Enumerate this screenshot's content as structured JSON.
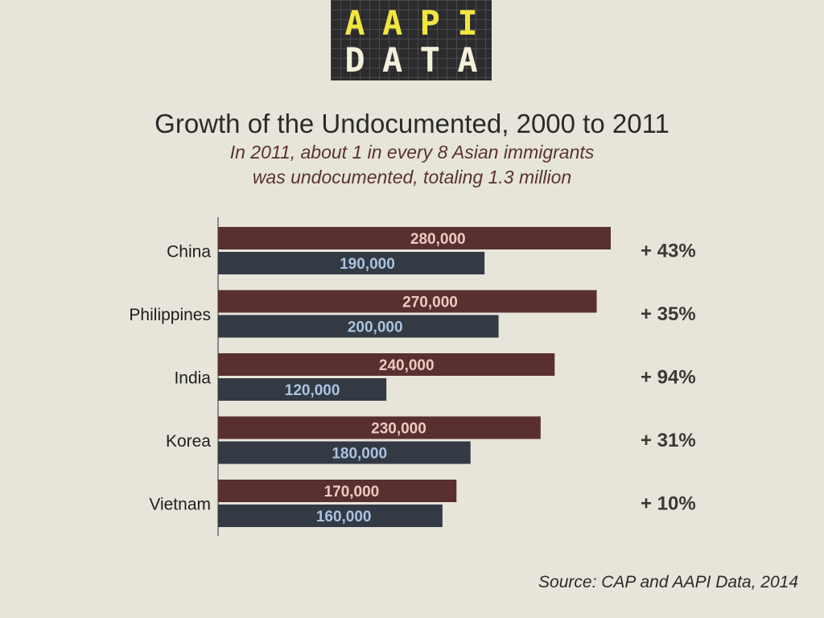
{
  "logo": {
    "line1": [
      "A",
      "A",
      "P",
      "I"
    ],
    "line2": [
      "D",
      "A",
      "T",
      "A"
    ]
  },
  "header": {
    "title": "Growth of the Undocumented, 2000 to 2011",
    "subtitle_line1": "In 2011, about 1 in every 8 Asian immigrants",
    "subtitle_line2": "was undocumented, totaling 1.3 million"
  },
  "source": "Source: CAP and AAPI Data, 2014",
  "colors": {
    "background": "#e7e5da",
    "series_2011": "#5a2f30",
    "series_2000": "#343a44",
    "label_2011": "#efc8c1",
    "label_2000": "#a9c3e0",
    "growth_text": "#3a3a33"
  },
  "chart_data": {
    "type": "bar",
    "orientation": "horizontal",
    "categories": [
      "China",
      "Philippines",
      "India",
      "Korea",
      "Vietnam"
    ],
    "series": [
      {
        "values": [
          280000,
          270000,
          240000,
          230000,
          170000
        ],
        "labels": [
          "280,000",
          "270,000",
          "240,000",
          "230,000",
          "170,000"
        ]
      },
      {
        "values": [
          190000,
          200000,
          120000,
          180000,
          160000
        ],
        "labels": [
          "190,000",
          "200,000",
          "120,000",
          "180,000",
          "160,000"
        ]
      }
    ],
    "growth_labels": [
      "+ 43%",
      "+ 35%",
      "+ 94%",
      "+ 31%",
      "+ 10%"
    ],
    "xlim": [
      0,
      280000
    ],
    "grid": false,
    "legend": "none"
  }
}
